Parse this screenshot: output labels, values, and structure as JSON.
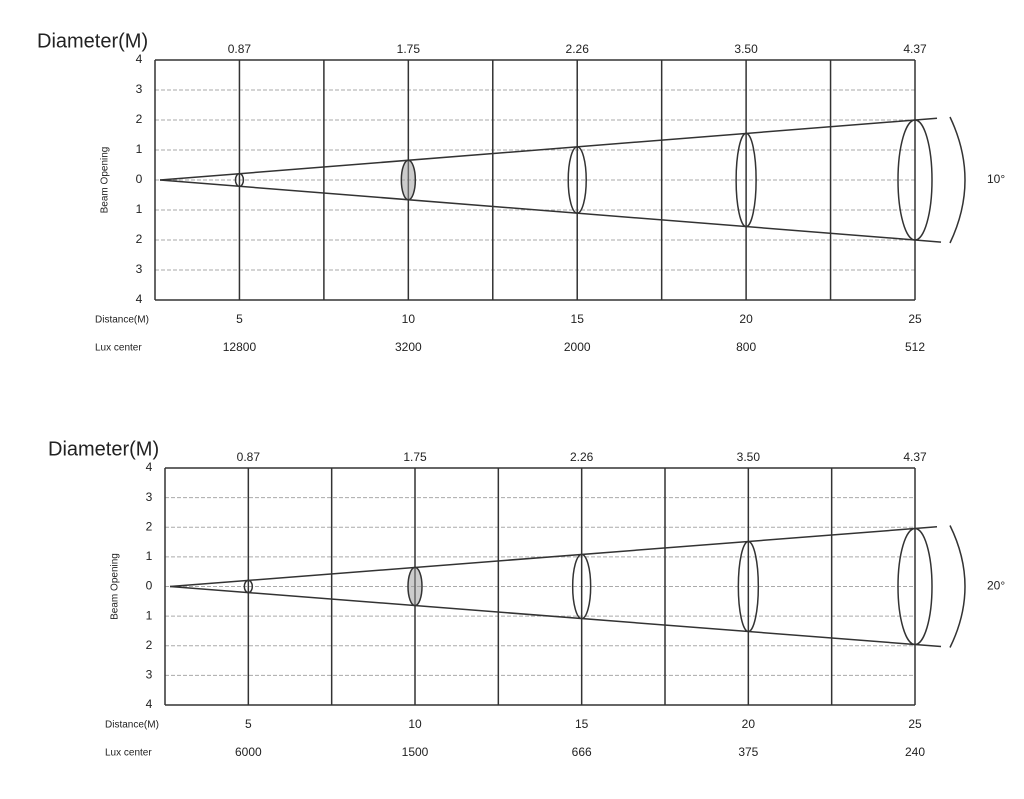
{
  "panels": [
    {
      "title": "Diameter(M)",
      "diameters": [
        "0.87",
        "1.75",
        "2.26",
        "3.50",
        "4.37"
      ],
      "scale": [
        "4",
        "3",
        "2",
        "1",
        "0",
        "1",
        "2",
        "3",
        "4"
      ],
      "axis_label": "Beam Opening",
      "distance_label": "Distance(M)",
      "distances": [
        "5",
        "10",
        "15",
        "20",
        "25"
      ],
      "lux_label": "Lux center",
      "lux": [
        "12800",
        "3200",
        "2000",
        "800",
        "512"
      ],
      "angle": "10°"
    },
    {
      "title": "Diameter(M)",
      "diameters": [
        "0.87",
        "1.75",
        "2.26",
        "3.50",
        "4.37"
      ],
      "scale": [
        "4",
        "3",
        "2",
        "1",
        "0",
        "1",
        "2",
        "3",
        "4"
      ],
      "axis_label": "Beam Opening",
      "distance_label": "Distance(M)",
      "distances": [
        "5",
        "10",
        "15",
        "20",
        "25"
      ],
      "lux_label": "Lux center",
      "lux": [
        "6000",
        "1500",
        "666",
        "375",
        "240"
      ],
      "angle": "20°"
    }
  ]
}
